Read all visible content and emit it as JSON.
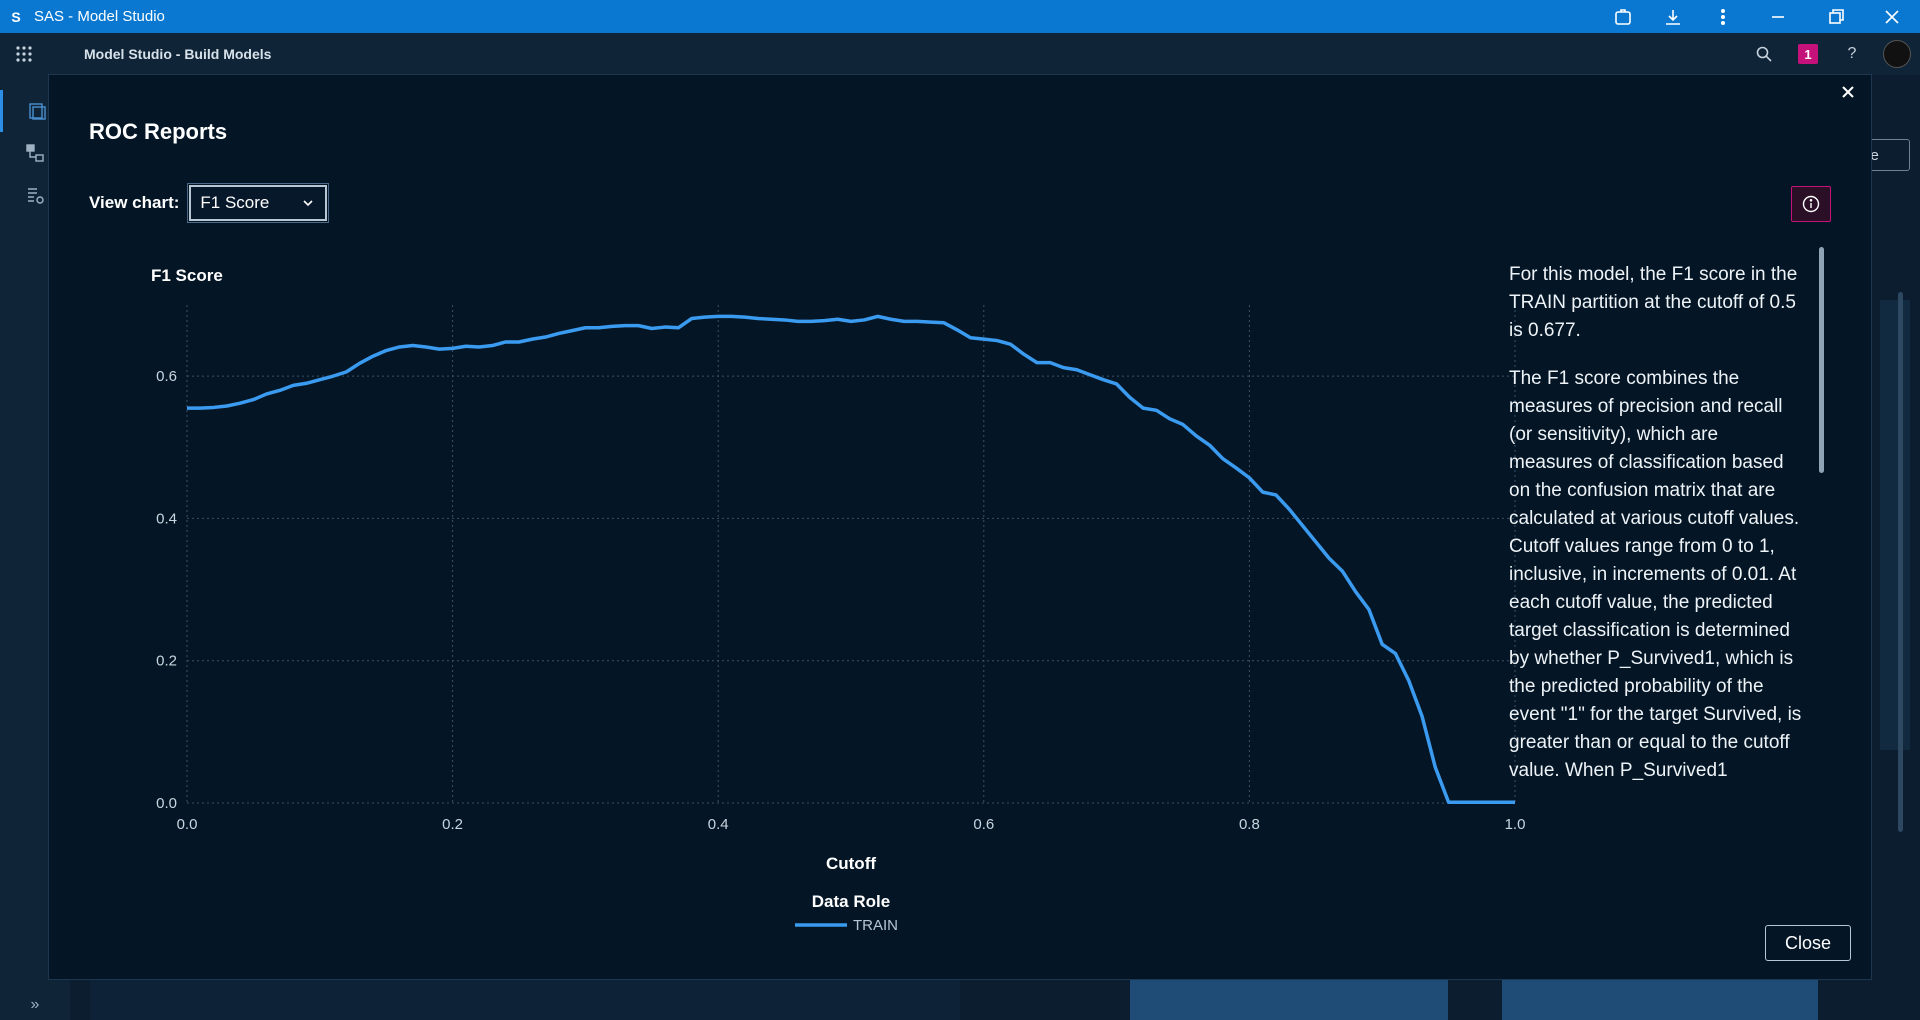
{
  "window": {
    "title": "SAS - Model Studio",
    "app_icon_letter": "S"
  },
  "appbar": {
    "title": "Model Studio - Build Models",
    "notification_count": "1",
    "help": "?"
  },
  "background": {
    "right_button_label": "se"
  },
  "modal": {
    "title": "ROC Reports",
    "view_chart_label": "View chart:",
    "view_chart_value": "F1 Score",
    "close_label": "Close",
    "description": [
      "For this model, the F1 score in the TRAIN partition at the cutoff of 0.5 is 0.677.",
      "The F1 score combines the measures of precision and recall (or sensitivity), which are measures of classification based on the confusion matrix that are calculated at various cutoff values. Cutoff values range from 0 to 1, inclusive, in increments of 0.01. At each cutoff value, the predicted target classification is determined by whether P_Survived1, which is the predicted probability of the event \"1\" for the target Survived, is greater than or equal to the cutoff value. When P_Survived1"
    ]
  },
  "chart_data": {
    "type": "line",
    "title": "F1 Score",
    "xlabel": "Cutoff",
    "ylabel": "",
    "xlim": [
      0,
      1
    ],
    "ylim": [
      0,
      0.7
    ],
    "x_ticks": [
      "0.0",
      "0.2",
      "0.4",
      "0.6",
      "0.8",
      "1.0"
    ],
    "y_ticks": [
      "0.0",
      "0.2",
      "0.4",
      "0.6"
    ],
    "grid": true,
    "legend_title": "Data Role",
    "legend_position": "bottom",
    "series": [
      {
        "name": "TRAIN",
        "color": "#3a9bf0",
        "x": [
          0.0,
          0.01,
          0.02,
          0.03,
          0.04,
          0.05,
          0.06,
          0.07,
          0.08,
          0.09,
          0.1,
          0.11,
          0.12,
          0.13,
          0.14,
          0.15,
          0.16,
          0.17,
          0.18,
          0.19,
          0.2,
          0.21,
          0.22,
          0.23,
          0.24,
          0.25,
          0.26,
          0.27,
          0.28,
          0.29,
          0.3,
          0.31,
          0.32,
          0.33,
          0.34,
          0.35,
          0.36,
          0.37,
          0.38,
          0.39,
          0.4,
          0.41,
          0.42,
          0.43,
          0.44,
          0.45,
          0.46,
          0.47,
          0.48,
          0.49,
          0.5,
          0.51,
          0.52,
          0.53,
          0.54,
          0.55,
          0.56,
          0.57,
          0.58,
          0.59,
          0.6,
          0.61,
          0.62,
          0.63,
          0.64,
          0.65,
          0.66,
          0.67,
          0.68,
          0.69,
          0.7,
          0.71,
          0.72,
          0.73,
          0.74,
          0.75,
          0.76,
          0.77,
          0.78,
          0.79,
          0.8,
          0.81,
          0.82,
          0.83,
          0.84,
          0.85,
          0.86,
          0.87,
          0.88,
          0.89,
          0.9,
          0.91,
          0.92,
          0.93,
          0.94,
          0.95,
          0.96,
          0.97,
          0.98,
          0.99,
          1.0
        ],
        "y": [
          0.555,
          0.555,
          0.556,
          0.558,
          0.562,
          0.567,
          0.575,
          0.58,
          0.587,
          0.59,
          0.595,
          0.6,
          0.606,
          0.618,
          0.628,
          0.636,
          0.641,
          0.643,
          0.641,
          0.638,
          0.639,
          0.642,
          0.641,
          0.643,
          0.648,
          0.648,
          0.652,
          0.655,
          0.66,
          0.664,
          0.668,
          0.668,
          0.67,
          0.671,
          0.671,
          0.667,
          0.669,
          0.668,
          0.681,
          0.683,
          0.684,
          0.684,
          0.683,
          0.681,
          0.68,
          0.679,
          0.677,
          0.677,
          0.678,
          0.68,
          0.677,
          0.679,
          0.684,
          0.68,
          0.677,
          0.677,
          0.676,
          0.675,
          0.665,
          0.654,
          0.652,
          0.65,
          0.645,
          0.631,
          0.619,
          0.619,
          0.612,
          0.609,
          0.602,
          0.595,
          0.589,
          0.57,
          0.555,
          0.552,
          0.54,
          0.532,
          0.516,
          0.503,
          0.484,
          0.471,
          0.457,
          0.437,
          0.433,
          0.413,
          0.39,
          0.367,
          0.344,
          0.326,
          0.297,
          0.272,
          0.223,
          0.21,
          0.172,
          0.122,
          0.05,
          0.001,
          0.001,
          0.001,
          0.001,
          0.001,
          0.001
        ]
      }
    ]
  }
}
